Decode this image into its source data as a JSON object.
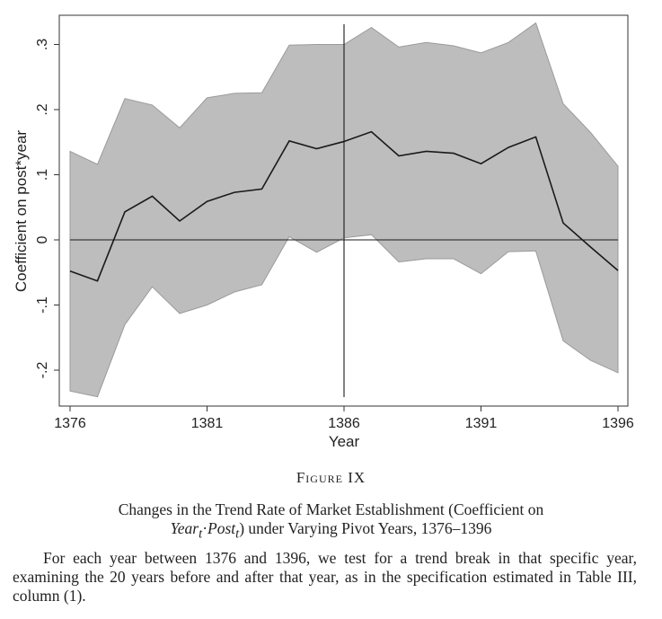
{
  "chart_data": {
    "type": "area",
    "xlabel": "Year",
    "ylabel": "Coefficient on post*year",
    "xlim": [
      1376,
      1396
    ],
    "ylim": [
      -0.25,
      0.35
    ],
    "xticks": [
      1376,
      1381,
      1386,
      1391,
      1396
    ],
    "xtick_labels": [
      "1376",
      "1381",
      "1386",
      "1391",
      "1396"
    ],
    "yticks": [
      -0.2,
      -0.1,
      0,
      0.1,
      0.2,
      0.3
    ],
    "ytick_labels": [
      "-.2",
      "-.1",
      "0",
      ".1",
      ".2",
      ".3"
    ],
    "x": [
      1376,
      1377,
      1378,
      1379,
      1380,
      1381,
      1382,
      1383,
      1384,
      1385,
      1386,
      1387,
      1388,
      1389,
      1390,
      1391,
      1392,
      1393,
      1394,
      1395,
      1396
    ],
    "series": [
      {
        "role": "estimate",
        "values": [
          -0.048,
          -0.063,
          0.043,
          0.067,
          0.029,
          0.059,
          0.073,
          0.078,
          0.152,
          0.14,
          0.151,
          0.166,
          0.129,
          0.136,
          0.133,
          0.117,
          0.142,
          0.158,
          0.026,
          -0.011,
          -0.047
        ]
      },
      {
        "role": "ci_upper",
        "values": [
          0.136,
          0.116,
          0.217,
          0.207,
          0.172,
          0.218,
          0.225,
          0.226,
          0.299,
          0.3,
          0.3,
          0.326,
          0.296,
          0.303,
          0.298,
          0.287,
          0.303,
          0.333,
          0.209,
          0.165,
          0.113
        ]
      },
      {
        "role": "ci_lower",
        "values": [
          -0.232,
          -0.241,
          -0.13,
          -0.072,
          -0.113,
          -0.1,
          -0.08,
          -0.069,
          0.005,
          -0.019,
          0.003,
          0.008,
          -0.034,
          -0.029,
          -0.029,
          -0.052,
          -0.018,
          -0.017,
          -0.155,
          -0.185,
          -0.204
        ]
      }
    ],
    "reference_lines": {
      "horizontal_y": 0,
      "vertical_x": 1386
    },
    "grid": false,
    "colors": {
      "band": "#bdbdbd",
      "band_edge": "#9a9a9a",
      "line": "#1a1a1a",
      "axes": "#333333"
    }
  },
  "caption": {
    "figure_label": "Figure IX",
    "title_line1": "Changes in the Trend Rate of Market Establishment (Coefficient on",
    "title_line2_expr": "Year",
    "title_line2_sub1": "t",
    "title_line2_dot": "·",
    "title_line2_expr2": "Post",
    "title_line2_sub2": "t",
    "title_line2_rest": ") under Varying Pivot Years, 1376–1396",
    "note": "For each year between 1376 and 1396, we test for a trend break in that specific year, examining the 20 years before and after that year, as in the specification estimated in Table III, column (1)."
  }
}
